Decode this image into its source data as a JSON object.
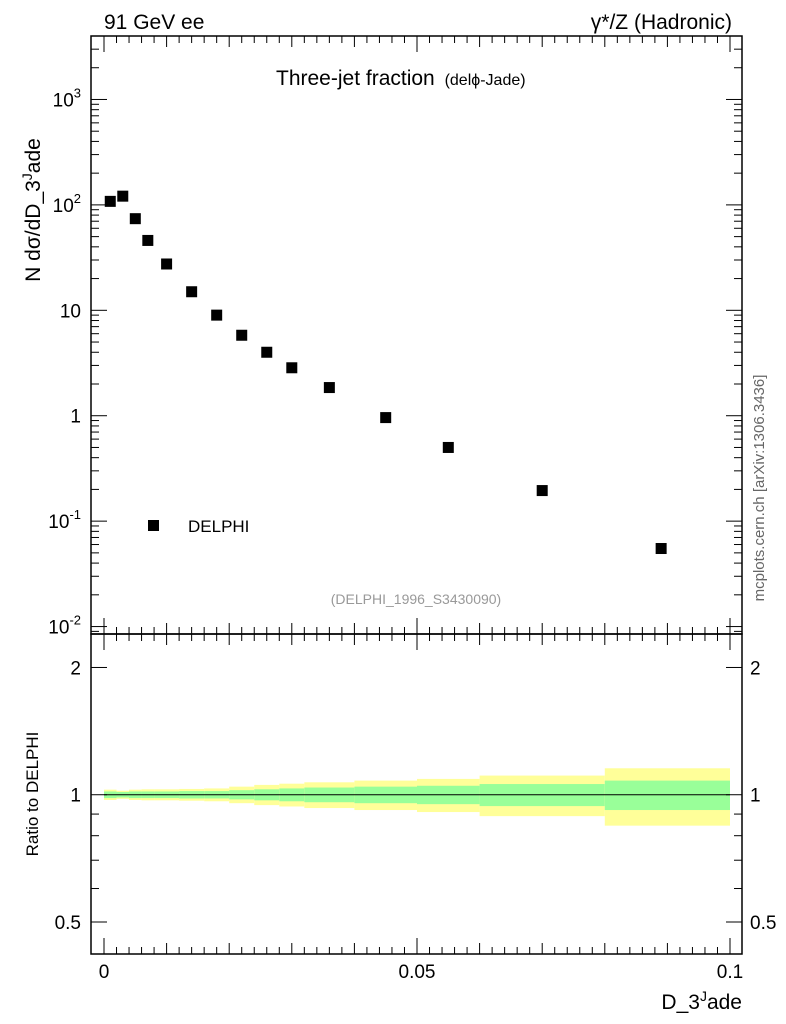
{
  "header": {
    "left": "91 GeV ee",
    "right": "γ*/Z (Hadronic)"
  },
  "chart_data": [
    {
      "type": "scatter",
      "panel": "main",
      "title": "Three-jet fraction",
      "title_suffix": "(delϕ-Jade)",
      "ylabel": "N dσ/dD_3^Jade",
      "yscale": "log",
      "ylim": [
        0.0085,
        4000
      ],
      "xlim": [
        -0.002,
        0.1
      ],
      "ytick_labels": [
        "10^-2",
        "10^-1",
        "1",
        "10",
        "10^2",
        "10^3"
      ],
      "legend": {
        "label": "DELPHI",
        "placement": "bottom-left"
      },
      "analysis_tag": "(DELPHI_1996_S3430090)",
      "series": [
        {
          "name": "DELPHI",
          "x": [
            0.001,
            0.003,
            0.005,
            0.007,
            0.01,
            0.014,
            0.018,
            0.022,
            0.026,
            0.03,
            0.036,
            0.045,
            0.055,
            0.07,
            0.089
          ],
          "y": [
            108,
            121,
            74,
            46,
            27.5,
            15,
            9,
            5.8,
            4.0,
            2.85,
            1.85,
            0.96,
            0.5,
            0.195,
            0.055
          ]
        }
      ]
    },
    {
      "type": "area",
      "panel": "ratio",
      "ylabel": "Ratio to DELPHI",
      "xlabel": "D_3^Jade",
      "yscale": "log",
      "ylim": [
        0.42,
        2.4
      ],
      "xlim": [
        -0.002,
        0.1
      ],
      "xtick_labels": [
        "0",
        "0.05",
        "0.1"
      ],
      "ytick_labels": [
        "0.5",
        "1",
        "2"
      ],
      "reference_line": 1.0,
      "bands": {
        "edges": [
          0.0,
          0.002,
          0.004,
          0.006,
          0.008,
          0.012,
          0.016,
          0.02,
          0.024,
          0.028,
          0.032,
          0.04,
          0.05,
          0.06,
          0.08,
          0.1
        ],
        "inner_halfwidth": [
          0.018,
          0.015,
          0.018,
          0.018,
          0.018,
          0.02,
          0.02,
          0.025,
          0.03,
          0.035,
          0.04,
          0.045,
          0.05,
          0.06,
          0.08
        ],
        "outer_halfwidth": [
          0.028,
          0.022,
          0.028,
          0.03,
          0.03,
          0.032,
          0.035,
          0.045,
          0.055,
          0.062,
          0.07,
          0.08,
          0.09,
          0.11,
          0.155
        ]
      }
    }
  ],
  "watermark": "mcplots.cern.ch [arXiv:1306.3436]",
  "colors": {
    "marker": "#000000",
    "inner_band": "#99ff99",
    "outer_band": "#ffff99",
    "tag_text": "#999999",
    "watermark_text": "#666666"
  }
}
